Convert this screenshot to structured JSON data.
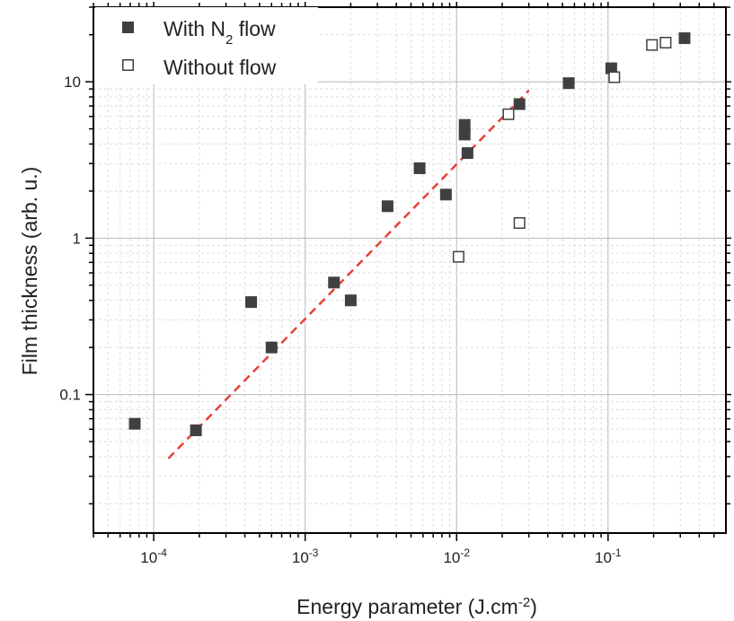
{
  "chart_data": {
    "type": "scatter",
    "xscale": "log",
    "yscale": "log",
    "xlim": [
      4e-05,
      0.6
    ],
    "ylim": [
      0.013,
      30
    ],
    "xlabel": {
      "main": "Energy parameter (J.cm",
      "sup": "-2",
      "end": ")"
    },
    "ylabel": "Film thickness (arb. u.)",
    "xticks": [
      {
        "value": 0.0001,
        "base": "10",
        "exp": "-4"
      },
      {
        "value": 0.001,
        "base": "10",
        "exp": "-3"
      },
      {
        "value": 0.01,
        "base": "10",
        "exp": "-2"
      },
      {
        "value": 0.1,
        "base": "10",
        "exp": "-1"
      }
    ],
    "yticks": [
      {
        "value": 0.1,
        "label": "0.1"
      },
      {
        "value": 1,
        "label": "1"
      },
      {
        "value": 10,
        "label": "10"
      }
    ],
    "grid": true,
    "legend_position": "top-left",
    "series": [
      {
        "name": {
          "main": "With N",
          "sub": "2",
          "end": " flow"
        },
        "marker": "filled-square",
        "color": "#404040",
        "points": [
          [
            7.5e-05,
            0.065
          ],
          [
            0.00019,
            0.059
          ],
          [
            0.00044,
            0.39
          ],
          [
            0.0006,
            0.2
          ],
          [
            0.00155,
            0.52
          ],
          [
            0.002,
            0.4
          ],
          [
            0.0035,
            1.6
          ],
          [
            0.0057,
            2.8
          ],
          [
            0.0085,
            1.9
          ],
          [
            0.0113,
            5.3
          ],
          [
            0.0113,
            4.6
          ],
          [
            0.0118,
            3.5
          ],
          [
            0.026,
            7.2
          ],
          [
            0.055,
            9.8
          ],
          [
            0.105,
            12.2
          ],
          [
            0.32,
            19.0
          ]
        ]
      },
      {
        "name": "Without flow",
        "marker": "open-square",
        "color": "#404040",
        "points": [
          [
            0.0103,
            0.76
          ],
          [
            0.022,
            6.2
          ],
          [
            0.026,
            1.25
          ],
          [
            0.11,
            10.7
          ],
          [
            0.195,
            17.2
          ],
          [
            0.24,
            17.8
          ]
        ]
      }
    ],
    "fit_line": {
      "style": "dashed",
      "color": "#e8403a",
      "from": [
        0.000125,
        0.039
      ],
      "to": [
        0.03,
        8.8
      ]
    }
  }
}
